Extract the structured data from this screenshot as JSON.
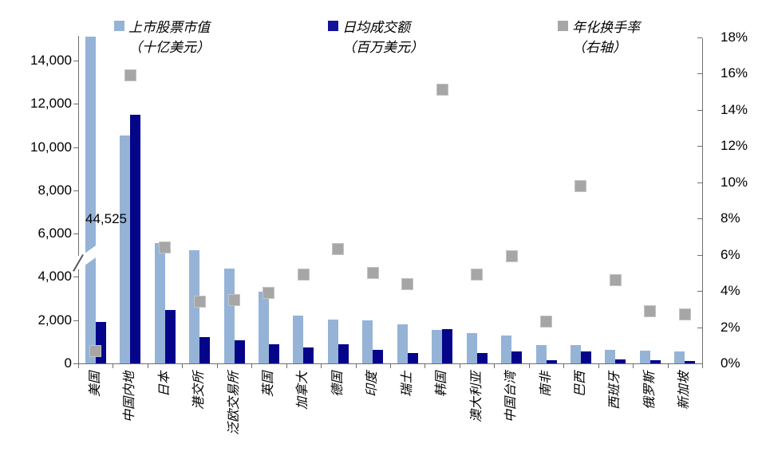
{
  "legend": [
    {
      "line1": "上市股票市值",
      "line2": "（十亿美元）",
      "color": "#95B3D7"
    },
    {
      "line1": "日均成交额",
      "line2": "（百万美元）",
      "color": "#12129B"
    },
    {
      "line1": "年化换手率",
      "line2": "（右轴）",
      "color": "#A6A6A6"
    }
  ],
  "annotation": {
    "text": "44,525"
  },
  "colors": {
    "market_cap_bar": "#95B3D7",
    "daily_volume_bar": "#05058A",
    "turnover_marker": "#A6A6A6",
    "axis_line": "#6e6e6e"
  },
  "chart_data": {
    "type": "bar",
    "categories": [
      "美国",
      "中国内地",
      "日本",
      "港交所",
      "泛欧交易所",
      "英国",
      "加拿大",
      "德国",
      "印度",
      "瑞士",
      "韩国",
      "澳大利亚",
      "中国台湾",
      "南非",
      "巴西",
      "西班牙",
      "俄罗斯",
      "新加坡"
    ],
    "series": [
      {
        "name": "上市股票市值（十亿美元）",
        "type": "bar",
        "axis": "left",
        "color": "#95B3D7",
        "values": [
          44525,
          10550,
          5560,
          5220,
          4400,
          3310,
          2220,
          2030,
          1980,
          1820,
          1540,
          1390,
          1300,
          840,
          840,
          630,
          590,
          560
        ]
      },
      {
        "name": "日均成交额（百万美元）",
        "type": "bar",
        "axis": "left",
        "color": "#05058A",
        "values": [
          1915,
          11490,
          2460,
          1200,
          1060,
          870,
          750,
          900,
          630,
          490,
          1600,
          470,
          540,
          140,
          550,
          180,
          140,
          110
        ]
      },
      {
        "name": "年化换手率（右轴）",
        "type": "scatter",
        "marker": "square",
        "axis": "right",
        "color": "#A6A6A6",
        "values": [
          0.7,
          15.9,
          6.4,
          3.4,
          3.5,
          3.9,
          4.9,
          6.3,
          5.0,
          4.4,
          15.1,
          4.9,
          5.9,
          2.3,
          9.8,
          4.6,
          2.9,
          2.7
        ]
      }
    ],
    "left_axis": {
      "ticks": [
        0,
        2000,
        4000,
        6000,
        8000,
        10000,
        12000,
        14000
      ],
      "display_max": 15100,
      "axis_break": {
        "category": "美国",
        "annotated_value": "44,525"
      }
    },
    "right_axis": {
      "ticks_pct": [
        0,
        2,
        4,
        6,
        8,
        10,
        12,
        14,
        16,
        18
      ]
    },
    "grid": false,
    "legend_position": "top",
    "title": ""
  }
}
